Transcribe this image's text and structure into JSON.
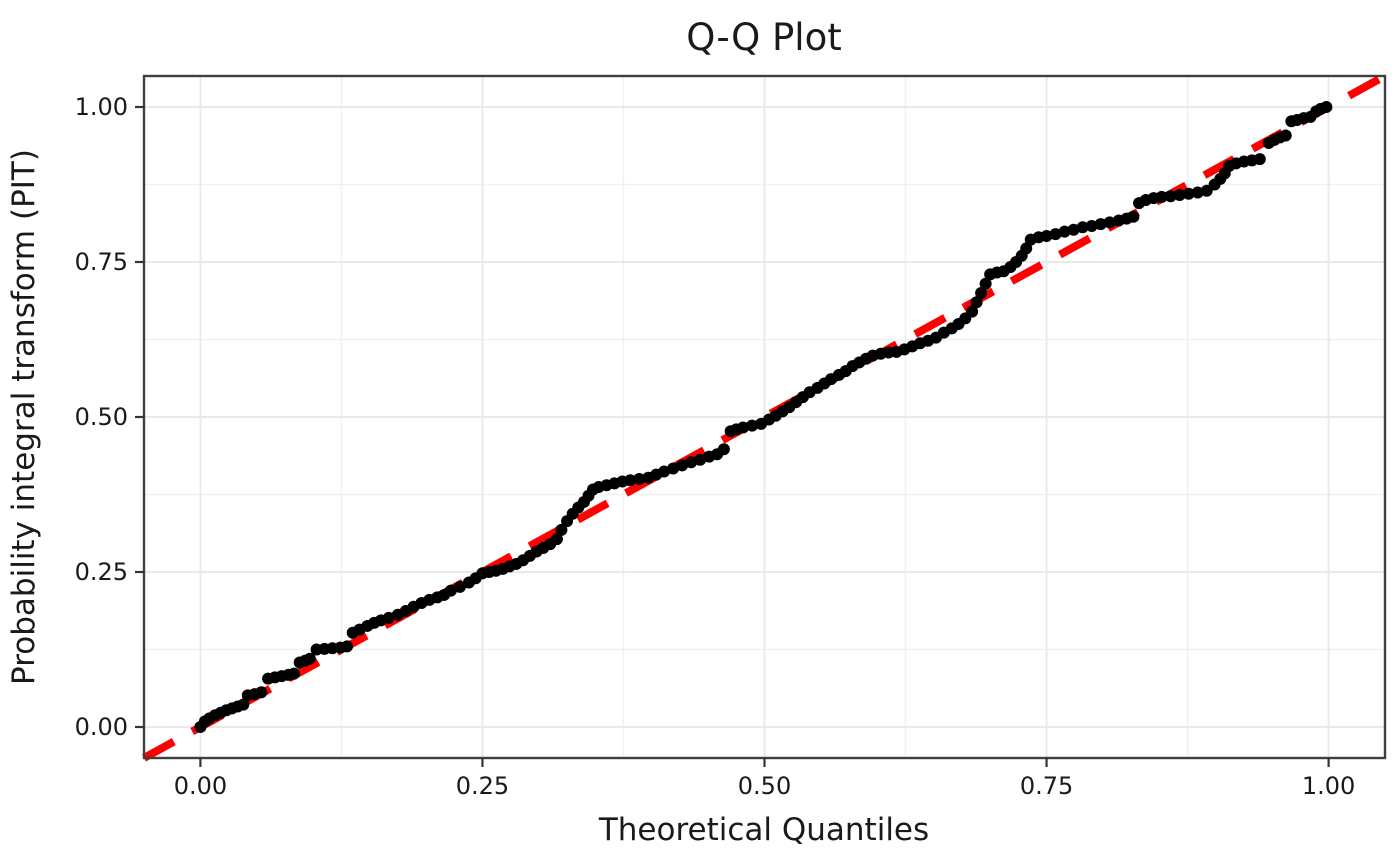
{
  "title": "Q-Q Plot",
  "axes": {
    "x_label": "Theoretical Quantiles",
    "y_label": "Probability integral transform (PIT)",
    "x_tick_labels": [
      "0.00",
      "0.25",
      "0.50",
      "0.75",
      "1.00"
    ],
    "y_tick_labels": [
      "0.00",
      "0.25",
      "0.50",
      "0.75",
      "1.00"
    ]
  },
  "colors": {
    "background": "#ffffff",
    "panel_border": "#3f3f3f",
    "grid_major": "#e9e9e9",
    "grid_minor": "#f1f1f1",
    "tick_mark": "#333333",
    "text": "#1a1a1a",
    "point": "#000000",
    "reference_line": "#ff0000"
  },
  "chart_data": {
    "type": "scatter",
    "title": "Q-Q Plot",
    "xlabel": "Theoretical Quantiles",
    "ylabel": "Probability integral transform (PIT)",
    "xlim": [
      -0.05,
      1.05
    ],
    "ylim": [
      -0.05,
      1.05
    ],
    "x_ticks": [
      0,
      0.25,
      0.5,
      0.75,
      1.0
    ],
    "y_ticks": [
      0,
      0.25,
      0.5,
      0.75,
      1.0
    ],
    "x_minor_ticks": [
      0.125,
      0.375,
      0.625,
      0.875
    ],
    "y_minor_ticks": [
      0.125,
      0.375,
      0.625,
      0.875
    ],
    "grid": "major+minor",
    "legend": "none",
    "reference_line": {
      "type": "y=x",
      "from": -0.05,
      "to": 1.05,
      "style": "dashed",
      "color": "#ff0000",
      "width": 8,
      "dash": [
        34,
        21
      ]
    },
    "point_radius": 6,
    "point_color": "#000000",
    "points": [
      [
        0.0,
        0.0
      ],
      [
        0.004,
        0.009
      ],
      [
        0.008,
        0.014
      ],
      [
        0.013,
        0.019
      ],
      [
        0.018,
        0.023
      ],
      [
        0.023,
        0.027
      ],
      [
        0.028,
        0.03
      ],
      [
        0.033,
        0.033
      ],
      [
        0.038,
        0.036
      ],
      [
        0.042,
        0.051
      ],
      [
        0.048,
        0.053
      ],
      [
        0.054,
        0.056
      ],
      [
        0.06,
        0.078
      ],
      [
        0.066,
        0.08
      ],
      [
        0.072,
        0.082
      ],
      [
        0.078,
        0.084
      ],
      [
        0.083,
        0.086
      ],
      [
        0.088,
        0.104
      ],
      [
        0.093,
        0.107
      ],
      [
        0.097,
        0.11
      ],
      [
        0.103,
        0.125
      ],
      [
        0.11,
        0.126
      ],
      [
        0.117,
        0.127
      ],
      [
        0.124,
        0.128
      ],
      [
        0.13,
        0.13
      ],
      [
        0.135,
        0.152
      ],
      [
        0.141,
        0.157
      ],
      [
        0.148,
        0.163
      ],
      [
        0.154,
        0.168
      ],
      [
        0.16,
        0.172
      ],
      [
        0.167,
        0.176
      ],
      [
        0.175,
        0.181
      ],
      [
        0.182,
        0.187
      ],
      [
        0.189,
        0.194
      ],
      [
        0.196,
        0.2
      ],
      [
        0.203,
        0.205
      ],
      [
        0.21,
        0.209
      ],
      [
        0.216,
        0.213
      ],
      [
        0.222,
        0.22
      ],
      [
        0.23,
        0.226
      ],
      [
        0.238,
        0.233
      ],
      [
        0.244,
        0.24
      ],
      [
        0.25,
        0.248
      ],
      [
        0.256,
        0.25
      ],
      [
        0.262,
        0.252
      ],
      [
        0.268,
        0.255
      ],
      [
        0.274,
        0.259
      ],
      [
        0.28,
        0.263
      ],
      [
        0.286,
        0.269
      ],
      [
        0.292,
        0.276
      ],
      [
        0.298,
        0.283
      ],
      [
        0.304,
        0.289
      ],
      [
        0.31,
        0.295
      ],
      [
        0.316,
        0.303
      ],
      [
        0.32,
        0.318
      ],
      [
        0.325,
        0.332
      ],
      [
        0.33,
        0.344
      ],
      [
        0.335,
        0.354
      ],
      [
        0.34,
        0.363
      ],
      [
        0.344,
        0.373
      ],
      [
        0.348,
        0.383
      ],
      [
        0.353,
        0.387
      ],
      [
        0.36,
        0.39
      ],
      [
        0.367,
        0.393
      ],
      [
        0.374,
        0.396
      ],
      [
        0.381,
        0.398
      ],
      [
        0.389,
        0.4
      ],
      [
        0.397,
        0.402
      ],
      [
        0.404,
        0.407
      ],
      [
        0.411,
        0.412
      ],
      [
        0.419,
        0.417
      ],
      [
        0.427,
        0.422
      ],
      [
        0.435,
        0.427
      ],
      [
        0.443,
        0.431
      ],
      [
        0.451,
        0.436
      ],
      [
        0.458,
        0.44
      ],
      [
        0.464,
        0.448
      ],
      [
        0.47,
        0.477
      ],
      [
        0.475,
        0.48
      ],
      [
        0.481,
        0.483
      ],
      [
        0.489,
        0.486
      ],
      [
        0.497,
        0.489
      ],
      [
        0.504,
        0.496
      ],
      [
        0.51,
        0.502
      ],
      [
        0.516,
        0.509
      ],
      [
        0.522,
        0.516
      ],
      [
        0.528,
        0.524
      ],
      [
        0.534,
        0.532
      ],
      [
        0.54,
        0.54
      ],
      [
        0.547,
        0.547
      ],
      [
        0.553,
        0.554
      ],
      [
        0.559,
        0.561
      ],
      [
        0.566,
        0.568
      ],
      [
        0.572,
        0.574
      ],
      [
        0.578,
        0.582
      ],
      [
        0.584,
        0.588
      ],
      [
        0.59,
        0.594
      ],
      [
        0.596,
        0.599
      ],
      [
        0.603,
        0.602
      ],
      [
        0.61,
        0.604
      ],
      [
        0.617,
        0.605
      ],
      [
        0.624,
        0.609
      ],
      [
        0.631,
        0.614
      ],
      [
        0.638,
        0.619
      ],
      [
        0.645,
        0.623
      ],
      [
        0.652,
        0.628
      ],
      [
        0.659,
        0.636
      ],
      [
        0.666,
        0.643
      ],
      [
        0.672,
        0.65
      ],
      [
        0.678,
        0.659
      ],
      [
        0.684,
        0.67
      ],
      [
        0.688,
        0.685
      ],
      [
        0.692,
        0.7
      ],
      [
        0.696,
        0.715
      ],
      [
        0.7,
        0.73
      ],
      [
        0.706,
        0.733
      ],
      [
        0.712,
        0.735
      ],
      [
        0.718,
        0.742
      ],
      [
        0.723,
        0.75
      ],
      [
        0.728,
        0.76
      ],
      [
        0.732,
        0.772
      ],
      [
        0.736,
        0.786
      ],
      [
        0.743,
        0.79
      ],
      [
        0.75,
        0.792
      ],
      [
        0.758,
        0.795
      ],
      [
        0.766,
        0.799
      ],
      [
        0.774,
        0.802
      ],
      [
        0.782,
        0.806
      ],
      [
        0.79,
        0.808
      ],
      [
        0.798,
        0.811
      ],
      [
        0.806,
        0.814
      ],
      [
        0.814,
        0.817
      ],
      [
        0.821,
        0.82
      ],
      [
        0.827,
        0.823
      ],
      [
        0.832,
        0.845
      ],
      [
        0.838,
        0.85
      ],
      [
        0.845,
        0.853
      ],
      [
        0.852,
        0.855
      ],
      [
        0.86,
        0.856
      ],
      [
        0.868,
        0.858
      ],
      [
        0.876,
        0.86
      ],
      [
        0.884,
        0.862
      ],
      [
        0.892,
        0.865
      ],
      [
        0.899,
        0.875
      ],
      [
        0.904,
        0.884
      ],
      [
        0.908,
        0.893
      ],
      [
        0.912,
        0.905
      ],
      [
        0.918,
        0.909
      ],
      [
        0.925,
        0.912
      ],
      [
        0.932,
        0.914
      ],
      [
        0.939,
        0.916
      ],
      [
        0.947,
        0.942
      ],
      [
        0.952,
        0.947
      ],
      [
        0.957,
        0.951
      ],
      [
        0.962,
        0.954
      ],
      [
        0.967,
        0.977
      ],
      [
        0.972,
        0.979
      ],
      [
        0.978,
        0.982
      ],
      [
        0.984,
        0.984
      ],
      [
        0.989,
        0.993
      ],
      [
        0.993,
        0.997
      ],
      [
        0.998,
        1.0
      ]
    ]
  }
}
